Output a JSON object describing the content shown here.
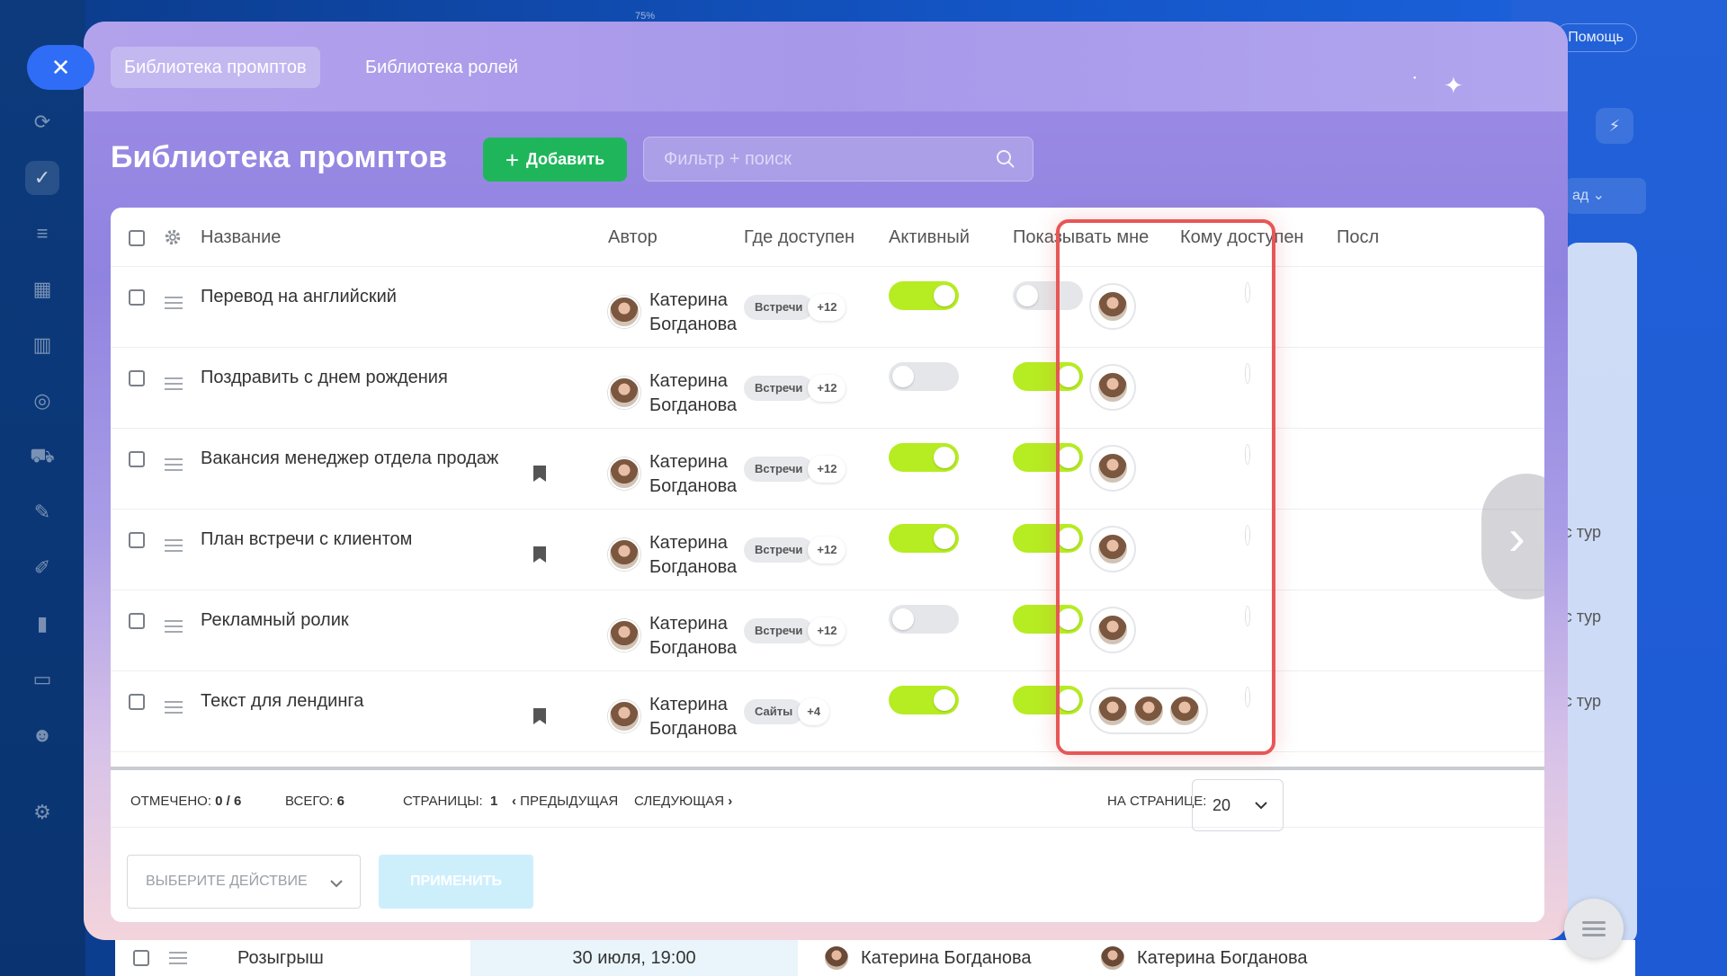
{
  "background": {
    "zoom_label": "75%",
    "help_label": "Помощь",
    "select_fragment": "ад",
    "tur_labels": [
      "курс тур",
      "курс тур",
      "курс тур"
    ],
    "bottom_row": {
      "name": "Розыгрыш",
      "date": "30 июля, 19:00",
      "author1": "Катерина Богданова",
      "author2": "Катерина Богданова"
    },
    "rail_icons": [
      "sync-icon",
      "tasks-icon",
      "filter-icon",
      "calendar-icon",
      "building-icon",
      "target-icon",
      "cart-icon",
      "document-icon",
      "pen-icon",
      "chart-icon",
      "id-card-icon",
      "robot-icon",
      "settings-icon"
    ]
  },
  "modal": {
    "tabs": [
      {
        "label": "Библиотека промптов",
        "active": true
      },
      {
        "label": "Библиотека ролей",
        "active": false
      }
    ],
    "title": "Библиотека промптов",
    "add_label": "Добавить",
    "search_placeholder": "Фильтр + поиск"
  },
  "table": {
    "columns": {
      "name": "Название",
      "author": "Автор",
      "where": "Где доступен",
      "active": "Активный",
      "show_me": "Показывать мне",
      "who": "Кому доступен",
      "last": "Посл"
    },
    "rows": [
      {
        "name": "Перевод на английский",
        "bookmark": false,
        "author_first": "Катерина",
        "author_last": "Богданова",
        "where_tag": "Встречи",
        "where_more": "+12",
        "active": true,
        "show_me": false,
        "who_count": 1
      },
      {
        "name": "Поздравить с днем рождения",
        "bookmark": false,
        "author_first": "Катерина",
        "author_last": "Богданова",
        "where_tag": "Встречи",
        "where_more": "+12",
        "active": false,
        "show_me": true,
        "who_count": 1
      },
      {
        "name": "Вакансия менеджер отдела продаж",
        "bookmark": true,
        "author_first": "Катерина",
        "author_last": "Богданова",
        "where_tag": "Встречи",
        "where_more": "+12",
        "active": true,
        "show_me": true,
        "who_count": 1
      },
      {
        "name": "План встречи с клиентом",
        "bookmark": true,
        "author_first": "Катерина",
        "author_last": "Богданова",
        "where_tag": "Встречи",
        "where_more": "+12",
        "active": true,
        "show_me": true,
        "who_count": 1
      },
      {
        "name": "Рекламный ролик",
        "bookmark": false,
        "author_first": "Катерина",
        "author_last": "Богданова",
        "where_tag": "Встречи",
        "where_more": "+12",
        "active": false,
        "show_me": true,
        "who_count": 1
      },
      {
        "name": "Текст для лендинга",
        "bookmark": true,
        "author_first": "Катерина",
        "author_last": "Богданова",
        "where_tag": "Сайты",
        "where_more": "+4",
        "active": true,
        "show_me": true,
        "who_count": 3
      }
    ]
  },
  "footer": {
    "selected_label": "Отмечено:",
    "selected_value": "0 / 6",
    "total_label": "Всего:",
    "total_value": "6",
    "pages_label": "Страницы:",
    "pages_value": "1",
    "prev_label": "Предыдущая",
    "next_label": "Следующая",
    "per_page_label": "На странице:",
    "per_page_value": "20",
    "action_placeholder": "Выберите действие",
    "apply_label": "Применить"
  },
  "colors": {
    "toggle_on": "#b6ec22",
    "toggle_off": "#e4e6e9",
    "add_button": "#1fb65b",
    "highlight_border": "#e85656"
  }
}
